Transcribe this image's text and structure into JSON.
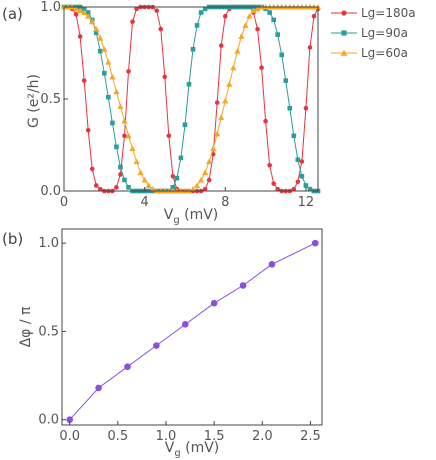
{
  "chart_data": [
    {
      "panel_label": "(a)",
      "type": "line",
      "xlabel_main": "V",
      "xlabel_sub": "g",
      "xlabel_unit": " (mV)",
      "ylabel": "G (e²/h)",
      "xlim": [
        0,
        12.6
      ],
      "ylim": [
        0,
        1
      ],
      "xticks": [
        "0",
        "4",
        "8",
        "12"
      ],
      "xtick_values": [
        0,
        4,
        8,
        12
      ],
      "yticks": [
        "0.0",
        "0.5",
        "1.0"
      ],
      "ytick_values": [
        0,
        0.5,
        1.0
      ],
      "legend_position": "outside-top-right",
      "series": [
        {
          "name": "Lg=180a",
          "color": "#e8343f",
          "marker": "circle",
          "x": [
            0.0,
            0.2,
            0.4,
            0.6,
            0.8,
            1.0,
            1.2,
            1.4,
            1.6,
            1.8,
            2.0,
            2.2,
            2.4,
            2.6,
            2.8,
            3.0,
            3.2,
            3.4,
            3.6,
            3.8,
            4.0,
            4.2,
            4.4,
            4.6,
            4.8,
            5.0,
            5.2,
            5.4,
            5.6,
            5.8,
            6.0,
            6.2,
            6.4,
            6.6,
            6.8,
            7.0,
            7.2,
            7.4,
            7.6,
            7.8,
            8.0,
            8.2,
            8.4,
            8.6,
            8.8,
            9.0,
            9.2,
            9.4,
            9.6,
            9.8,
            10.0,
            10.2,
            10.4,
            10.6,
            10.8,
            11.0,
            11.2,
            11.4,
            11.6,
            11.8,
            12.0,
            12.2,
            12.4,
            12.6
          ],
          "y": [
            1.0,
            1.0,
            0.99,
            0.96,
            0.84,
            0.6,
            0.33,
            0.12,
            0.03,
            0.01,
            0.0,
            0.0,
            0.0,
            0.02,
            0.09,
            0.3,
            0.65,
            0.92,
            0.99,
            1.0,
            1.0,
            1.0,
            1.0,
            0.98,
            0.88,
            0.62,
            0.3,
            0.08,
            0.01,
            0.0,
            0.0,
            0.0,
            0.0,
            0.0,
            0.0,
            0.01,
            0.06,
            0.2,
            0.48,
            0.79,
            0.95,
            0.99,
            1.0,
            1.0,
            1.0,
            1.0,
            1.0,
            0.97,
            0.88,
            0.67,
            0.38,
            0.14,
            0.04,
            0.01,
            0.0,
            0.0,
            0.0,
            0.01,
            0.05,
            0.16,
            0.45,
            0.78,
            0.95,
            0.99
          ]
        },
        {
          "name": "Lg=90a",
          "color": "#2a9d9d",
          "marker": "square",
          "x": [
            0.0,
            0.2,
            0.4,
            0.6,
            0.8,
            1.0,
            1.2,
            1.4,
            1.6,
            1.8,
            2.0,
            2.2,
            2.4,
            2.6,
            2.8,
            3.0,
            3.2,
            3.4,
            3.6,
            3.8,
            4.0,
            4.2,
            4.4,
            4.6,
            4.8,
            5.0,
            5.2,
            5.4,
            5.6,
            5.8,
            6.0,
            6.2,
            6.4,
            6.6,
            6.8,
            7.0,
            7.2,
            7.4,
            7.6,
            7.8,
            8.0,
            8.2,
            8.4,
            8.6,
            8.8,
            9.0,
            9.2,
            9.4,
            9.6,
            9.8,
            10.0,
            10.2,
            10.4,
            10.6,
            10.8,
            11.0,
            11.2,
            11.4,
            11.6,
            11.8,
            12.0,
            12.2,
            12.4,
            12.6
          ],
          "y": [
            1.0,
            1.0,
            1.0,
            1.0,
            1.0,
            0.99,
            0.97,
            0.93,
            0.86,
            0.76,
            0.64,
            0.51,
            0.37,
            0.24,
            0.13,
            0.06,
            0.02,
            0.0,
            0.0,
            0.0,
            0.0,
            0.0,
            0.0,
            0.0,
            0.0,
            0.0,
            0.0,
            0.02,
            0.07,
            0.18,
            0.36,
            0.58,
            0.77,
            0.9,
            0.97,
            0.99,
            1.0,
            1.0,
            1.0,
            1.0,
            1.0,
            1.0,
            1.0,
            1.0,
            1.0,
            1.0,
            1.0,
            1.0,
            1.0,
            1.0,
            0.99,
            0.97,
            0.93,
            0.85,
            0.74,
            0.6,
            0.45,
            0.3,
            0.17,
            0.08,
            0.03,
            0.01,
            0.0,
            0.0
          ]
        },
        {
          "name": "Lg=60a",
          "color": "#f5a623",
          "marker": "triangle",
          "x": [
            0.0,
            0.2,
            0.4,
            0.6,
            0.8,
            1.0,
            1.2,
            1.4,
            1.6,
            1.8,
            2.0,
            2.2,
            2.4,
            2.6,
            2.8,
            3.0,
            3.2,
            3.4,
            3.6,
            3.8,
            4.0,
            4.2,
            4.4,
            4.6,
            4.8,
            5.0,
            5.2,
            5.4,
            5.6,
            5.8,
            6.0,
            6.2,
            6.4,
            6.6,
            6.8,
            7.0,
            7.2,
            7.4,
            7.6,
            7.8,
            8.0,
            8.2,
            8.4,
            8.6,
            8.8,
            9.0,
            9.2,
            9.4,
            9.6,
            9.8,
            10.0,
            10.2,
            10.4,
            10.6,
            10.8,
            11.0,
            11.2,
            11.4,
            11.6,
            11.8,
            12.0,
            12.2,
            12.4,
            12.6
          ],
          "y": [
            1.0,
            1.0,
            1.0,
            0.99,
            0.98,
            0.97,
            0.95,
            0.92,
            0.88,
            0.83,
            0.77,
            0.7,
            0.62,
            0.54,
            0.46,
            0.38,
            0.3,
            0.23,
            0.16,
            0.1,
            0.06,
            0.03,
            0.01,
            0.0,
            0.0,
            0.0,
            0.0,
            0.0,
            0.0,
            0.0,
            0.0,
            0.0,
            0.01,
            0.03,
            0.06,
            0.1,
            0.16,
            0.23,
            0.31,
            0.4,
            0.49,
            0.58,
            0.67,
            0.76,
            0.84,
            0.9,
            0.95,
            0.98,
            0.99,
            1.0,
            1.0,
            1.0,
            1.0,
            1.0,
            1.0,
            1.0,
            1.0,
            1.0,
            1.0,
            1.0,
            1.0,
            1.0,
            1.0,
            1.0
          ]
        }
      ]
    },
    {
      "panel_label": "(b)",
      "type": "line",
      "xlabel_main": "V",
      "xlabel_sub": "g",
      "xlabel_unit": " (mV)",
      "ylabel": "Δφ / π",
      "xlim": [
        -0.08,
        2.62
      ],
      "ylim": [
        -0.03,
        1.08
      ],
      "xticks": [
        "0.0",
        "0.5",
        "1.0",
        "1.5",
        "2.0",
        "2.5"
      ],
      "xtick_values": [
        0,
        0.5,
        1.0,
        1.5,
        2.0,
        2.5
      ],
      "yticks": [
        "0.0",
        "0.5",
        "1.0"
      ],
      "ytick_values": [
        0,
        0.5,
        1.0
      ],
      "series": [
        {
          "color": "#8a4fe0",
          "marker": "circle",
          "x": [
            0.0,
            0.3,
            0.6,
            0.9,
            1.2,
            1.5,
            1.8,
            2.1,
            2.55
          ],
          "y": [
            0.0,
            0.18,
            0.3,
            0.42,
            0.54,
            0.66,
            0.76,
            0.88,
            1.0
          ]
        }
      ]
    }
  ]
}
